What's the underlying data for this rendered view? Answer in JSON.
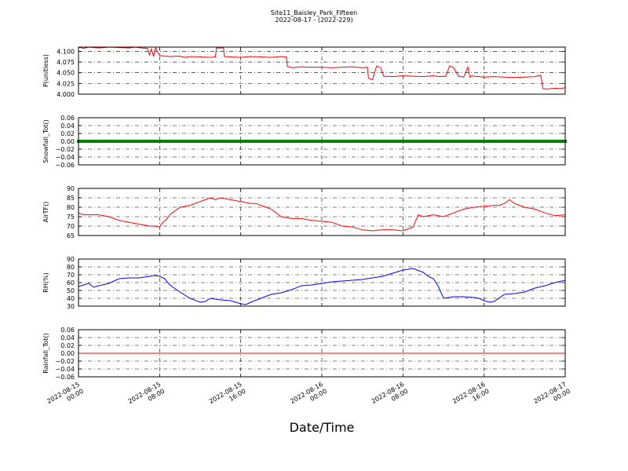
{
  "figure": {
    "title": "Site11_Baisley_Park_Fifteen",
    "subtitle": "2022-08-17 - (2022-229)",
    "xlabel": "Date/Time",
    "x_ticks": [
      [
        "2022-08-15",
        "00:00"
      ],
      [
        "2022-08-15",
        "08:00"
      ],
      [
        "2022-08-15",
        "16:00"
      ],
      [
        "2022-08-16",
        "00:00"
      ],
      [
        "2022-08-16",
        "08:00"
      ],
      [
        "2022-08-16",
        "16:00"
      ],
      [
        "2022-08-17",
        "00:00"
      ]
    ]
  },
  "chart_data": [
    {
      "type": "line",
      "ylabel": "P(unitless)",
      "xlim": [
        0,
        48
      ],
      "ylim": [
        4.0,
        4.11
      ],
      "y_ticks": [
        "4.000",
        "4.025",
        "4.050",
        "4.075",
        "4.100"
      ],
      "y_tick_values": [
        4.0,
        4.025,
        4.05,
        4.075,
        4.1
      ],
      "grid": true,
      "color": "#ff0000",
      "x": [
        0,
        0.5,
        1,
        2,
        3,
        4,
        5,
        5.6,
        6.2,
        6.8,
        7.0,
        7.2,
        7.4,
        7.6,
        8,
        9,
        10,
        10.5,
        11,
        12,
        13,
        13.5,
        13.6,
        14.3,
        14.4,
        15,
        16,
        17,
        18,
        19,
        20,
        20.5,
        20.6,
        21,
        22,
        23,
        24,
        25,
        26,
        27,
        28,
        28.5,
        28.6,
        29,
        29.4,
        29.8,
        30.1,
        31,
        32,
        33,
        34,
        35,
        35.5,
        36,
        36.2,
        36.6,
        37,
        37.5,
        37.6,
        38,
        38.4,
        38.6,
        38.8,
        39,
        39.5,
        40,
        41,
        42,
        43,
        44,
        45,
        45.6,
        45.8,
        46.2,
        47,
        47.5,
        48
      ],
      "y": [
        4.11,
        4.107,
        4.11,
        4.108,
        4.11,
        4.109,
        4.108,
        4.11,
        4.108,
        4.107,
        4.092,
        4.106,
        4.088,
        4.108,
        4.09,
        4.088,
        4.089,
        4.086,
        4.088,
        4.087,
        4.086,
        4.087,
        4.108,
        4.108,
        4.088,
        4.087,
        4.086,
        4.088,
        4.087,
        4.086,
        4.088,
        4.087,
        4.065,
        4.062,
        4.064,
        4.063,
        4.063,
        4.062,
        4.063,
        4.064,
        4.062,
        4.063,
        4.037,
        4.034,
        4.066,
        4.062,
        4.042,
        4.041,
        4.043,
        4.042,
        4.041,
        4.043,
        4.041,
        4.042,
        4.041,
        4.066,
        4.062,
        4.041,
        4.042,
        4.04,
        4.063,
        4.04,
        4.043,
        4.042,
        4.041,
        4.04,
        4.041,
        4.04,
        4.039,
        4.04,
        4.041,
        4.044,
        4.013,
        4.012,
        4.014,
        4.013,
        4.015
      ]
    },
    {
      "type": "line",
      "ylabel": "Snowfall_Tot()",
      "xlim": [
        0,
        48
      ],
      "ylim": [
        -0.06,
        0.06
      ],
      "y_ticks": [
        "−0.06",
        "−0.04",
        "−0.02",
        "0.00",
        "0.02",
        "0.04",
        "0.06"
      ],
      "y_tick_values": [
        -0.06,
        -0.04,
        -0.02,
        0,
        0.02,
        0.04,
        0.06
      ],
      "grid": true,
      "color": "#008000",
      "markers": true,
      "x": [
        0,
        48
      ],
      "y": [
        0,
        0
      ]
    },
    {
      "type": "line",
      "ylabel": "AirTF()",
      "xlim": [
        0,
        48
      ],
      "ylim": [
        65,
        90
      ],
      "y_ticks": [
        "65",
        "70",
        "75",
        "80",
        "85",
        "90"
      ],
      "y_tick_values": [
        65,
        70,
        75,
        80,
        85,
        90
      ],
      "grid": true,
      "color": "#ff0000",
      "x": [
        0,
        0.5,
        1,
        2,
        3,
        4,
        5,
        6,
        7,
        7.5,
        8,
        8.3,
        8.6,
        9,
        10,
        11,
        12,
        12.5,
        13,
        13.5,
        14,
        15,
        16,
        17,
        17.5,
        18,
        19,
        20,
        21,
        22,
        23,
        24,
        25,
        26,
        27,
        28,
        29,
        30,
        31,
        32,
        33,
        33.5,
        34,
        35,
        36,
        37,
        38,
        39,
        40,
        41,
        41.5,
        42,
        42.5,
        43,
        44,
        45,
        46,
        47,
        48
      ],
      "y": [
        77,
        76,
        76,
        76,
        75,
        73,
        72,
        71,
        70,
        70,
        69.5,
        72,
        73,
        76,
        80,
        81,
        83,
        84,
        85,
        84,
        85,
        84,
        83,
        82,
        82,
        81,
        79,
        75,
        74,
        74,
        73,
        72.5,
        72,
        70,
        69.5,
        68,
        67.5,
        68,
        68,
        67.5,
        69.5,
        76,
        75,
        76,
        75,
        77,
        79,
        80,
        80.5,
        81,
        81,
        82,
        84,
        82,
        80,
        79,
        77,
        75.5,
        76
      ]
    },
    {
      "type": "line",
      "ylabel": "RH(%)",
      "xlim": [
        0,
        48
      ],
      "ylim": [
        30,
        90
      ],
      "y_ticks": [
        "30",
        "40",
        "50",
        "60",
        "70",
        "80",
        "90"
      ],
      "y_tick_values": [
        30,
        40,
        50,
        60,
        70,
        80,
        90
      ],
      "grid": true,
      "color": "#0000ff",
      "x": [
        0,
        0.5,
        1,
        1.5,
        2,
        3,
        4,
        5,
        6,
        7,
        7.5,
        8,
        8.5,
        9,
        10,
        11,
        12,
        12.5,
        13,
        14,
        15,
        16,
        16.5,
        17,
        18,
        19,
        20,
        21,
        22,
        23,
        24,
        25,
        26,
        27,
        28,
        29,
        30,
        31,
        32,
        33,
        34,
        34.5,
        35,
        35.5,
        36,
        37,
        38,
        39,
        39.5,
        40,
        40.5,
        41,
        42,
        43,
        44,
        45,
        46,
        47,
        48
      ],
      "y": [
        55,
        57,
        59,
        54,
        56,
        59,
        65,
        66,
        66,
        68,
        69,
        68,
        65,
        57,
        48,
        40,
        35,
        36,
        40,
        38,
        37,
        33,
        32,
        35,
        40,
        45,
        47,
        51,
        56,
        57,
        59,
        61,
        62,
        63,
        64,
        66,
        68,
        72,
        76,
        78,
        73,
        68,
        65,
        55,
        40,
        42,
        42,
        41,
        40,
        37,
        35,
        36,
        45,
        46,
        48,
        53,
        56,
        60,
        63
      ]
    },
    {
      "type": "line",
      "ylabel": "Rainfall_Tot()",
      "xlim": [
        0,
        48
      ],
      "ylim": [
        -0.06,
        0.06
      ],
      "y_ticks": [
        "−0.06",
        "−0.04",
        "−0.02",
        "0.00",
        "0.02",
        "0.04",
        "0.06"
      ],
      "y_tick_values": [
        -0.06,
        -0.04,
        -0.02,
        0,
        0.02,
        0.04,
        0.06
      ],
      "grid": true,
      "color": "#ff0000",
      "x": [
        0,
        48
      ],
      "y": [
        0,
        0
      ]
    }
  ]
}
